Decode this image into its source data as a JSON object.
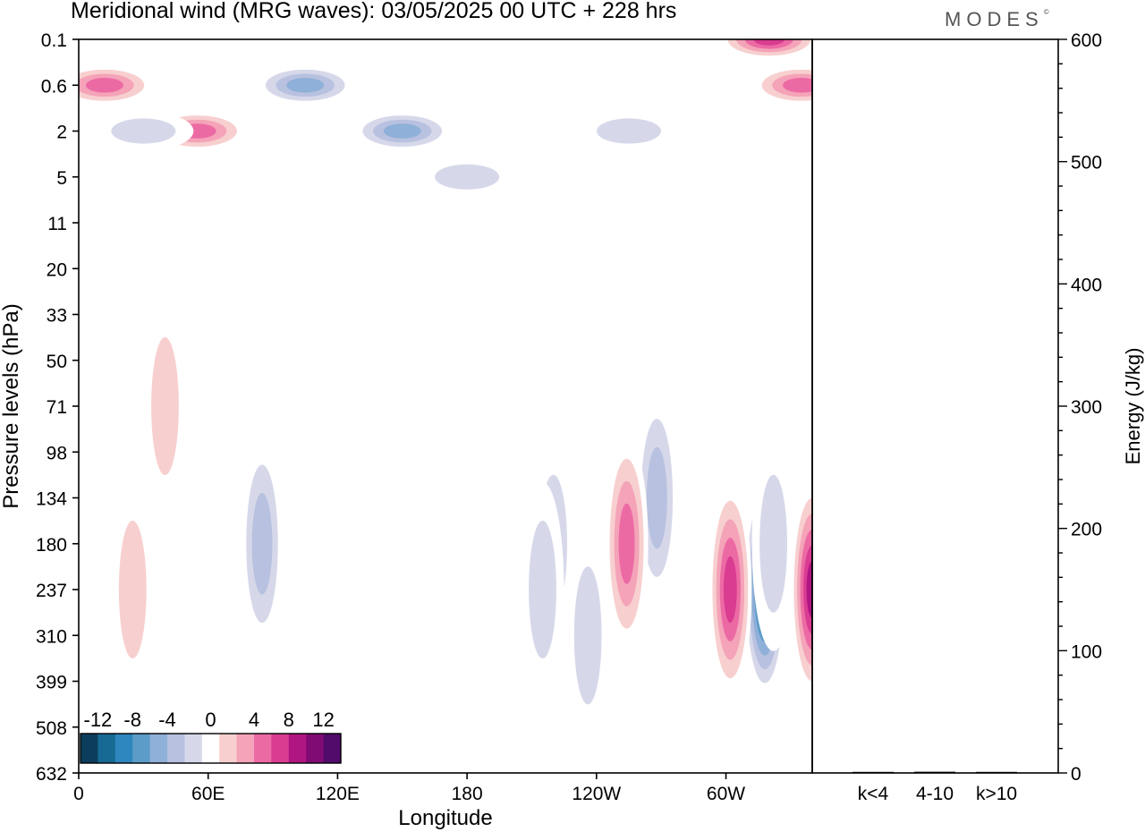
{
  "header": {
    "title": "Meridional wind (MRG waves):  03/05/2025  00 UTC  + 228 hrs",
    "brand": "MODES",
    "brand_mark": "©"
  },
  "chart_data": [
    {
      "type": "heatmap",
      "title": "Meridional wind (MRG waves):  03/05/2025  00 UTC  + 228 hrs",
      "xlabel": "Longitude",
      "ylabel": "Pressure levels (hPa)",
      "x_tick_labels": [
        "0",
        "60E",
        "120E",
        "180",
        "120W",
        "60W"
      ],
      "x_range": [
        0,
        340
      ],
      "y_tick_labels": [
        "0.1",
        "0.6",
        "2",
        "5",
        "11",
        "20",
        "33",
        "50",
        "71",
        "98",
        "134",
        "180",
        "237",
        "310",
        "399",
        "508",
        "632"
      ],
      "y_scale": "pressure levels, top = 0.1 hPa, bottom = 632 hPa",
      "colorbar": {
        "placement": "bottom-left inset",
        "tick_labels": [
          "-12",
          "-8",
          "-4",
          "0",
          "4",
          "8",
          "12"
        ],
        "levels": [
          -14,
          -12,
          -10,
          -8,
          -6,
          -4,
          -2,
          2,
          4,
          6,
          8,
          10,
          12,
          14
        ],
        "colors": [
          "#0d3d5c",
          "#176a94",
          "#2d86bd",
          "#5b9cc9",
          "#8fb0d8",
          "#b8c1df",
          "#d6d8ea",
          "#ffffff",
          "#f8cfcf",
          "#f4a3b8",
          "#ec6aa4",
          "#d93c91",
          "#b01682",
          "#800b74",
          "#520a6b"
        ]
      },
      "features": [
        {
          "lon": 318,
          "pressure": 237,
          "value": -14,
          "note": "strongest negative cell"
        },
        {
          "lon": 340,
          "pressure": 237,
          "value": 12,
          "note": "strong positive cell"
        },
        {
          "lon": 302,
          "pressure": 237,
          "value": 10,
          "note": "positive cell"
        },
        {
          "lon": 268,
          "pressure": 134,
          "value": -6,
          "note": "negative cell"
        },
        {
          "lon": 254,
          "pressure": 180,
          "value": 8,
          "note": "positive cell"
        },
        {
          "lon": 236,
          "pressure": 310,
          "value": -4,
          "note": "weak negative"
        },
        {
          "lon": 322,
          "pressure": 180,
          "value": -4,
          "note": "weak negative"
        },
        {
          "lon": 355,
          "pressure": 237,
          "value": 2,
          "note": "weak positive"
        },
        {
          "lon": 220,
          "pressure": 180,
          "value": -4,
          "note": "weak negative"
        },
        {
          "lon": 215,
          "pressure": 237,
          "value": -4,
          "note": "weak negative"
        },
        {
          "lon": 85,
          "pressure": 180,
          "value": -6,
          "note": "negative cell"
        },
        {
          "lon": 25,
          "pressure": 237,
          "value": 4,
          "note": "positive cell"
        },
        {
          "lon": 40,
          "pressure": 71,
          "value": 4,
          "note": "positive cell"
        },
        {
          "lon": 320,
          "pressure": 0.1,
          "value": 10,
          "note": "stratospheric positive"
        },
        {
          "lon": 335,
          "pressure": 0.6,
          "value": 8,
          "note": "stratospheric positive"
        },
        {
          "lon": 55,
          "pressure": 2,
          "value": 8,
          "note": "stratospheric positive"
        },
        {
          "lon": 12,
          "pressure": 0.6,
          "value": 8,
          "note": "stratospheric positive"
        },
        {
          "lon": 105,
          "pressure": 0.6,
          "value": -8,
          "note": "stratospheric negative"
        },
        {
          "lon": 150,
          "pressure": 2,
          "value": -8,
          "note": "stratospheric negative"
        },
        {
          "lon": 180,
          "pressure": 5,
          "value": -4,
          "note": "stratospheric negative"
        },
        {
          "lon": 30,
          "pressure": 2,
          "value": -4,
          "note": "stratospheric negative"
        },
        {
          "lon": 255,
          "pressure": 2,
          "value": -4,
          "note": "stratospheric negative"
        },
        {
          "lon": 232,
          "pressure": 11,
          "value": 2,
          "note": "weak positive"
        },
        {
          "lon": 10,
          "pressure": 11,
          "value": 2,
          "note": "weak positive"
        }
      ]
    },
    {
      "type": "bar",
      "ylabel": "Energy (J/kg)",
      "ylim": [
        0,
        600
      ],
      "y_tick_labels": [
        "0",
        "100",
        "200",
        "300",
        "400",
        "500",
        "600"
      ],
      "categories": [
        "k<4",
        "4-10",
        "k>10"
      ],
      "values": [
        0,
        1,
        0
      ]
    }
  ]
}
